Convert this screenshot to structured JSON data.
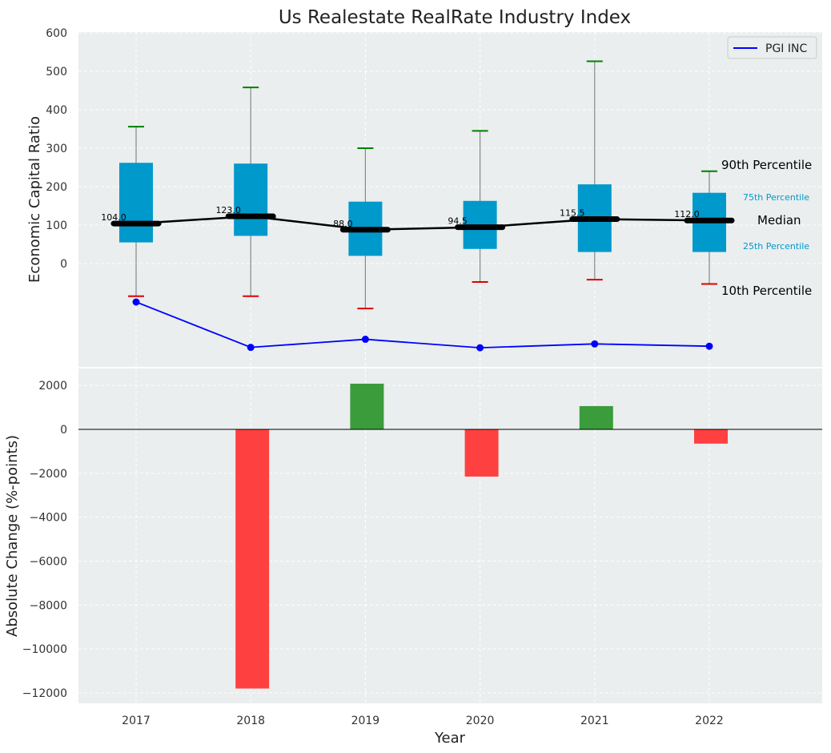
{
  "chart_data": [
    {
      "type": "box",
      "title": "Us Realestate RealRate Industry Index",
      "ylabel": "Economic Capital Ratio",
      "ylim": [
        -270,
        600
      ],
      "yticks": [
        0,
        100,
        200,
        300,
        400,
        500,
        600
      ],
      "categories": [
        "2017",
        "2018",
        "2019",
        "2020",
        "2021",
        "2022"
      ],
      "boxes": [
        {
          "p10": -85,
          "p25": 55,
          "median": 104.0,
          "p75": 262,
          "p90": 356
        },
        {
          "p10": -85,
          "p25": 72,
          "median": 123.0,
          "p75": 260,
          "p90": 458
        },
        {
          "p10": -117,
          "p25": 20,
          "median": 88.0,
          "p75": 161,
          "p90": 300
        },
        {
          "p10": -48,
          "p25": 38,
          "median": 94.5,
          "p75": 163,
          "p90": 345
        },
        {
          "p10": -42,
          "p25": 30,
          "median": 115.5,
          "p75": 206,
          "p90": 526
        },
        {
          "p10": -53,
          "p25": 30,
          "median": 112.0,
          "p75": 184,
          "p90": 240
        }
      ],
      "median_labels": [
        "104.0",
        "123.0",
        "88.0",
        "94.5",
        "115.5",
        "112.0"
      ],
      "company_series": {
        "name": "PGI INC",
        "values": [
          -100,
          -218,
          -197,
          -219,
          -209,
          -215
        ]
      },
      "legend": {
        "label": "PGI INC",
        "placement": "top-right"
      },
      "percentile_labels": {
        "p90": "90th Percentile",
        "p75": "75th Percentile",
        "median": "Median",
        "p25": "25th Percentile",
        "p10": "10th Percentile"
      },
      "grid": true,
      "colors": {
        "box": "#0099cc",
        "median": "#000000",
        "company": "#0000ff",
        "p90_cap": "#008000",
        "p10_cap": "#e00000",
        "whisker": "#888888"
      }
    },
    {
      "type": "bar",
      "ylabel": "Absolute Change (%-points)",
      "xlabel": "Year",
      "categories": [
        "2017",
        "2018",
        "2019",
        "2020",
        "2021",
        "2022"
      ],
      "values": [
        0,
        -11800,
        2080,
        -2150,
        1060,
        -650
      ],
      "ylim": [
        -12400,
        2800
      ],
      "yticks": [
        2000,
        0,
        -2000,
        -4000,
        -6000,
        -8000,
        -10000,
        -12000
      ],
      "ytick_labels": [
        "2000",
        "0",
        "−2000",
        "−4000",
        "−6000",
        "−8000",
        "−10000",
        "−12000"
      ],
      "grid": true,
      "colors": {
        "positive": "#3a9c3a",
        "negative": "#ff4040"
      }
    }
  ]
}
